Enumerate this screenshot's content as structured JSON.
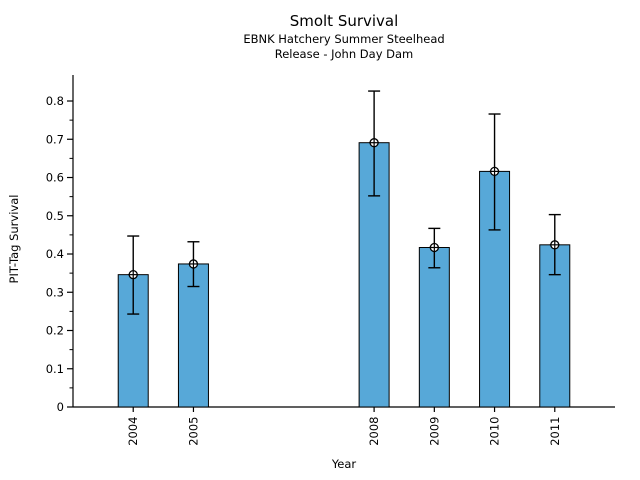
{
  "chart_data": {
    "type": "bar",
    "title": "Smolt Survival",
    "subtitle1": "EBNK Hatchery Summer Steelhead",
    "subtitle2": "Release - John Day Dam",
    "xlabel": "Year",
    "ylabel": "PIT-Tag Survival",
    "categories": [
      "2004",
      "2005",
      "2008",
      "2009",
      "2010",
      "2011"
    ],
    "x_numeric": [
      2004,
      2005,
      2008,
      2009,
      2010,
      2011
    ],
    "values": [
      0.346,
      0.374,
      0.691,
      0.417,
      0.616,
      0.424
    ],
    "error_low": [
      0.243,
      0.315,
      0.552,
      0.364,
      0.463,
      0.346
    ],
    "error_high": [
      0.447,
      0.432,
      0.826,
      0.467,
      0.766,
      0.503
    ],
    "xlim": [
      2003.0,
      2012.0
    ],
    "ylim": [
      0,
      0.868
    ],
    "y_major_ticks": [
      0,
      0.1,
      0.2,
      0.3,
      0.4,
      0.5,
      0.6,
      0.7,
      0.8
    ],
    "y_major_tick_labels": [
      "0",
      "0.1",
      "0.2",
      "0.3",
      "0.4",
      "0.5",
      "0.6",
      "0.7",
      "0.8"
    ],
    "y_minor_ticks": [
      0.05,
      0.15,
      0.25,
      0.35,
      0.45,
      0.55,
      0.65,
      0.75
    ],
    "grid": false,
    "legend": null,
    "bar_color": "#57a8d8",
    "bar_edge_color": "#000000",
    "error_bar_color": "#000000",
    "marker": "open-circle",
    "marker_face_color": "#ffffff",
    "text_color": "#000000",
    "background_color": "#ffffff"
  }
}
